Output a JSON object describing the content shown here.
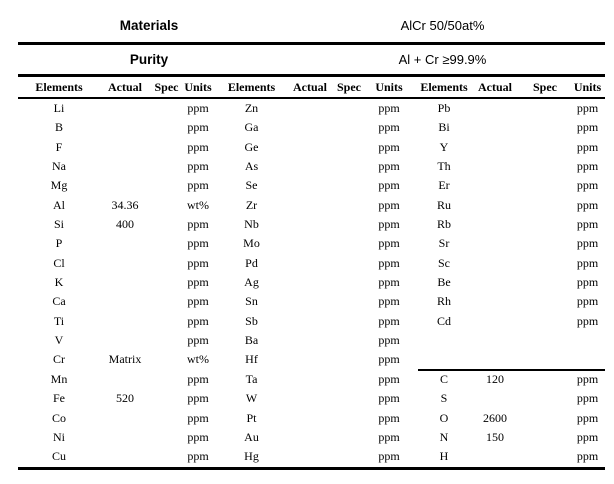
{
  "document": {
    "materials_label": "Materials",
    "materials_value": "AlCr 50/50at%",
    "purity_label": "Purity",
    "purity_value": "Al + Cr ≥99.9%"
  },
  "table": {
    "column_headers": [
      "Elements",
      "Actual",
      "Spec",
      "Units"
    ],
    "separator_row_index": 14,
    "groups": [
      {
        "name": "group-1",
        "rows": [
          {
            "element": "Li",
            "actual": "",
            "spec": "",
            "units": "ppm"
          },
          {
            "element": "B",
            "actual": "",
            "spec": "",
            "units": "ppm"
          },
          {
            "element": "F",
            "actual": "",
            "spec": "",
            "units": "ppm"
          },
          {
            "element": "Na",
            "actual": "",
            "spec": "",
            "units": "ppm"
          },
          {
            "element": "Mg",
            "actual": "",
            "spec": "",
            "units": "ppm"
          },
          {
            "element": "Al",
            "actual": "34.36",
            "spec": "",
            "units": "wt%"
          },
          {
            "element": "Si",
            "actual": "400",
            "spec": "",
            "units": "ppm"
          },
          {
            "element": "P",
            "actual": "",
            "spec": "",
            "units": "ppm"
          },
          {
            "element": "Cl",
            "actual": "",
            "spec": "",
            "units": "ppm"
          },
          {
            "element": "K",
            "actual": "",
            "spec": "",
            "units": "ppm"
          },
          {
            "element": "Ca",
            "actual": "",
            "spec": "",
            "units": "ppm"
          },
          {
            "element": "Ti",
            "actual": "",
            "spec": "",
            "units": "ppm"
          },
          {
            "element": "V",
            "actual": "",
            "spec": "",
            "units": "ppm"
          },
          {
            "element": "Cr",
            "actual": "Matrix",
            "spec": "",
            "units": "wt%"
          },
          {
            "element": "Mn",
            "actual": "",
            "spec": "",
            "units": "ppm"
          },
          {
            "element": "Fe",
            "actual": "520",
            "spec": "",
            "units": "ppm"
          },
          {
            "element": "Co",
            "actual": "",
            "spec": "",
            "units": "ppm"
          },
          {
            "element": "Ni",
            "actual": "",
            "spec": "",
            "units": "ppm"
          },
          {
            "element": "Cu",
            "actual": "",
            "spec": "",
            "units": "ppm"
          }
        ]
      },
      {
        "name": "group-2",
        "rows": [
          {
            "element": "Zn",
            "actual": "",
            "spec": "",
            "units": "ppm"
          },
          {
            "element": "Ga",
            "actual": "",
            "spec": "",
            "units": "ppm"
          },
          {
            "element": "Ge",
            "actual": "",
            "spec": "",
            "units": "ppm"
          },
          {
            "element": "As",
            "actual": "",
            "spec": "",
            "units": "ppm"
          },
          {
            "element": "Se",
            "actual": "",
            "spec": "",
            "units": "ppm"
          },
          {
            "element": "Zr",
            "actual": "",
            "spec": "",
            "units": "ppm"
          },
          {
            "element": "Nb",
            "actual": "",
            "spec": "",
            "units": "ppm"
          },
          {
            "element": "Mo",
            "actual": "",
            "spec": "",
            "units": "ppm"
          },
          {
            "element": "Pd",
            "actual": "",
            "spec": "",
            "units": "ppm"
          },
          {
            "element": "Ag",
            "actual": "",
            "spec": "",
            "units": "ppm"
          },
          {
            "element": "Sn",
            "actual": "",
            "spec": "",
            "units": "ppm"
          },
          {
            "element": "Sb",
            "actual": "",
            "spec": "",
            "units": "ppm"
          },
          {
            "element": "Ba",
            "actual": "",
            "spec": "",
            "units": "ppm"
          },
          {
            "element": "Hf",
            "actual": "",
            "spec": "",
            "units": "ppm"
          },
          {
            "element": "Ta",
            "actual": "",
            "spec": "",
            "units": "ppm"
          },
          {
            "element": "W",
            "actual": "",
            "spec": "",
            "units": "ppm"
          },
          {
            "element": "Pt",
            "actual": "",
            "spec": "",
            "units": "ppm"
          },
          {
            "element": "Au",
            "actual": "",
            "spec": "",
            "units": "ppm"
          },
          {
            "element": "Hg",
            "actual": "",
            "spec": "",
            "units": "ppm"
          }
        ]
      },
      {
        "name": "group-3",
        "rows": [
          {
            "element": "Pb",
            "actual": "",
            "spec": "",
            "units": "ppm"
          },
          {
            "element": "Bi",
            "actual": "",
            "spec": "",
            "units": "ppm"
          },
          {
            "element": "Y",
            "actual": "",
            "spec": "",
            "units": "ppm"
          },
          {
            "element": "Th",
            "actual": "",
            "spec": "",
            "units": "ppm"
          },
          {
            "element": "Er",
            "actual": "",
            "spec": "",
            "units": "ppm"
          },
          {
            "element": "Ru",
            "actual": "",
            "spec": "",
            "units": "ppm"
          },
          {
            "element": "Rb",
            "actual": "",
            "spec": "",
            "units": "ppm"
          },
          {
            "element": "Sr",
            "actual": "",
            "spec": "",
            "units": "ppm"
          },
          {
            "element": "Sc",
            "actual": "",
            "spec": "",
            "units": "ppm"
          },
          {
            "element": "Be",
            "actual": "",
            "spec": "",
            "units": "ppm"
          },
          {
            "element": "Rh",
            "actual": "",
            "spec": "",
            "units": "ppm"
          },
          {
            "element": "Cd",
            "actual": "",
            "spec": "",
            "units": "ppm"
          },
          {
            "element": "",
            "actual": "",
            "spec": "",
            "units": ""
          },
          {
            "element": "",
            "actual": "",
            "spec": "",
            "units": ""
          },
          {
            "element": "C",
            "actual": "120",
            "spec": "",
            "units": "ppm"
          },
          {
            "element": "S",
            "actual": "",
            "spec": "",
            "units": "ppm"
          },
          {
            "element": "O",
            "actual": "2600",
            "spec": "",
            "units": "ppm"
          },
          {
            "element": "N",
            "actual": "150",
            "spec": "",
            "units": "ppm"
          },
          {
            "element": "H",
            "actual": "",
            "spec": "",
            "units": "ppm"
          }
        ]
      }
    ]
  }
}
